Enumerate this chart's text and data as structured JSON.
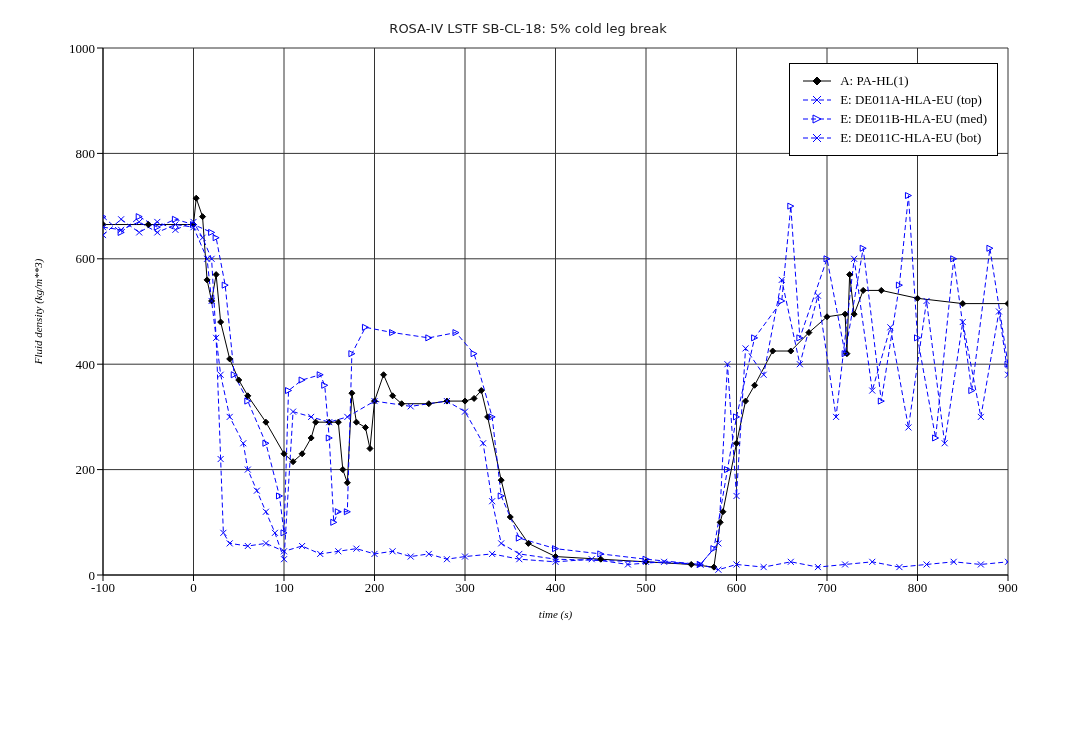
{
  "chart_data": {
    "type": "line",
    "title": "ROSA-IV LSTF SB-CL-18: 5% cold leg break",
    "xlabel": "time (s)",
    "ylabel": "Fluid density (kg/m**3)",
    "xlim": [
      -100,
      900
    ],
    "xticks": [
      -100,
      0,
      100,
      200,
      300,
      400,
      500,
      600,
      700,
      800,
      900
    ],
    "ylim": [
      0,
      1000
    ],
    "yticks": [
      0,
      200,
      400,
      600,
      800,
      1000
    ],
    "grid": true,
    "legend": "top right",
    "series": [
      {
        "name": "A: PA-HL(1)",
        "color": "#000000",
        "line_style": "solid",
        "marker": "diamond",
        "x": [
          -100,
          -50,
          0,
          3,
          10,
          15,
          20,
          25,
          30,
          40,
          50,
          60,
          80,
          100,
          110,
          120,
          130,
          135,
          150,
          160,
          165,
          170,
          175,
          180,
          190,
          195,
          200,
          210,
          220,
          230,
          260,
          280,
          300,
          310,
          318,
          325,
          340,
          350,
          370,
          400,
          450,
          500,
          550,
          575,
          582,
          585,
          600,
          610,
          620,
          640,
          660,
          680,
          700,
          720,
          722,
          725,
          730,
          740,
          760,
          800,
          850,
          900
        ],
        "values": [
          665,
          665,
          665,
          715,
          680,
          560,
          520,
          570,
          480,
          410,
          370,
          340,
          290,
          230,
          215,
          230,
          260,
          290,
          290,
          290,
          200,
          175,
          345,
          290,
          280,
          240,
          330,
          380,
          340,
          325,
          325,
          330,
          330,
          335,
          350,
          300,
          180,
          110,
          60,
          35,
          30,
          25,
          20,
          15,
          100,
          120,
          250,
          330,
          360,
          425,
          425,
          460,
          490,
          495,
          420,
          570,
          495,
          540,
          540,
          525,
          515,
          515
        ]
      },
      {
        "name": "E: DE011A-HLA-EU (top)",
        "color": "#0000ff",
        "line_style": "dashed",
        "marker": "cross",
        "x": [
          -100,
          -80,
          -60,
          -40,
          -20,
          0,
          10,
          20,
          25,
          30,
          33,
          40,
          60,
          80,
          100,
          120,
          140,
          160,
          180,
          200,
          220,
          240,
          260,
          280,
          300,
          330,
          360,
          400,
          440,
          480,
          520,
          560,
          580,
          600,
          630,
          660,
          690,
          720,
          750,
          780,
          810,
          840,
          870,
          900
        ],
        "values": [
          645,
          675,
          650,
          670,
          655,
          670,
          640,
          600,
          450,
          220,
          80,
          60,
          55,
          60,
          45,
          55,
          40,
          45,
          50,
          40,
          45,
          35,
          40,
          30,
          35,
          40,
          30,
          25,
          30,
          20,
          25,
          20,
          10,
          20,
          15,
          25,
          15,
          20,
          25,
          15,
          20,
          25,
          20,
          25
        ]
      },
      {
        "name": "E: DE011B-HLA-EU (med)",
        "color": "#0000ff",
        "line_style": "dashed",
        "marker": "triangle",
        "x": [
          -100,
          -80,
          -60,
          -40,
          -20,
          0,
          20,
          25,
          35,
          45,
          60,
          80,
          95,
          100,
          105,
          120,
          140,
          145,
          150,
          155,
          160,
          170,
          175,
          190,
          220,
          260,
          290,
          310,
          330,
          340,
          360,
          400,
          450,
          500,
          560,
          575,
          590,
          600,
          620,
          650,
          660,
          670,
          700,
          720,
          740,
          760,
          780,
          790,
          800,
          820,
          840,
          860,
          880,
          900
        ],
        "values": [
          680,
          650,
          680,
          660,
          675,
          665,
          650,
          640,
          550,
          380,
          330,
          250,
          150,
          80,
          350,
          370,
          380,
          360,
          260,
          100,
          120,
          120,
          420,
          470,
          460,
          450,
          460,
          420,
          300,
          150,
          70,
          50,
          40,
          30,
          20,
          50,
          200,
          300,
          450,
          520,
          700,
          450,
          600,
          420,
          620,
          330,
          550,
          720,
          450,
          260,
          600,
          350,
          620,
          400
        ]
      },
      {
        "name": "E: DE011C-HLA-EU (bot)",
        "color": "#0000ff",
        "line_style": "dashed",
        "marker": "cross",
        "x": [
          -100,
          -80,
          -60,
          -40,
          -20,
          0,
          15,
          20,
          30,
          40,
          55,
          60,
          70,
          80,
          90,
          100,
          110,
          130,
          150,
          170,
          200,
          240,
          280,
          300,
          320,
          330,
          340,
          360,
          400,
          500,
          560,
          580,
          590,
          600,
          610,
          630,
          650,
          670,
          690,
          710,
          730,
          750,
          770,
          790,
          810,
          830,
          850,
          870,
          890,
          900
        ],
        "values": [
          660,
          655,
          670,
          650,
          665,
          660,
          600,
          520,
          380,
          300,
          250,
          200,
          160,
          120,
          80,
          30,
          310,
          300,
          290,
          300,
          330,
          320,
          330,
          310,
          250,
          140,
          60,
          40,
          30,
          25,
          20,
          60,
          400,
          150,
          430,
          380,
          560,
          400,
          530,
          300,
          600,
          350,
          470,
          280,
          520,
          250,
          480,
          300,
          500,
          380
        ]
      }
    ]
  }
}
